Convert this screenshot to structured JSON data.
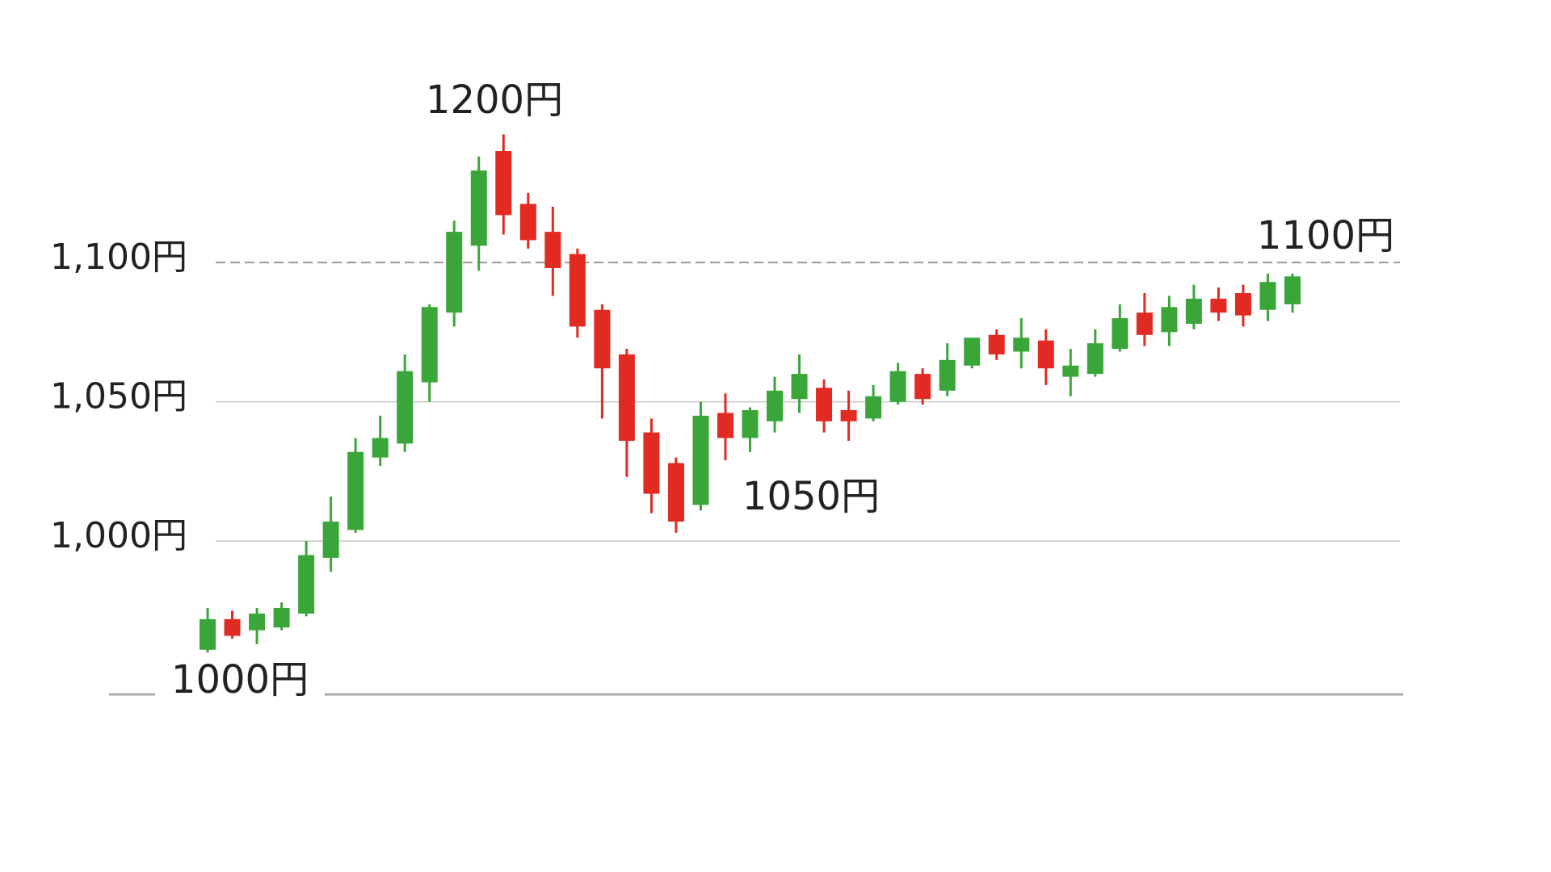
{
  "chart_data": {
    "type": "candlestick",
    "categories": [
      null,
      null,
      null,
      null,
      null,
      null,
      null,
      null,
      null,
      null,
      null,
      null,
      null,
      null,
      null,
      null,
      null,
      null,
      null,
      null,
      null,
      null,
      null,
      null,
      null,
      null,
      null,
      null,
      null,
      null,
      null,
      null,
      null,
      null,
      null,
      null,
      null,
      null,
      null,
      null,
      null,
      null,
      null,
      null,
      null
    ],
    "open": [
      961,
      972,
      968,
      969,
      974,
      994,
      1004,
      1030,
      1035,
      1057,
      1082,
      1106,
      1140,
      1121,
      1111,
      1103,
      1083,
      1067,
      1039,
      1028,
      1013,
      1046,
      1037,
      1043,
      1051,
      1055,
      1047,
      1044,
      1050,
      1060,
      1054,
      1063,
      1074,
      1068,
      1072,
      1059,
      1060,
      1069,
      1082,
      1075,
      1078,
      1087,
      1089,
      1083,
      1085
    ],
    "high": [
      976,
      975,
      976,
      978,
      1000,
      1016,
      1037,
      1045,
      1067,
      1085,
      1115,
      1138,
      1146,
      1125,
      1120,
      1105,
      1085,
      1069,
      1044,
      1030,
      1050,
      1053,
      1048,
      1059,
      1067,
      1058,
      1054,
      1056,
      1064,
      1062,
      1071,
      1073,
      1076,
      1080,
      1076,
      1069,
      1076,
      1085,
      1089,
      1088,
      1092,
      1091,
      1092,
      1096,
      1096
    ],
    "low": [
      960,
      965,
      963,
      968,
      973,
      989,
      1003,
      1027,
      1032,
      1050,
      1077,
      1097,
      1110,
      1105,
      1088,
      1073,
      1044,
      1023,
      1010,
      1003,
      1011,
      1029,
      1032,
      1039,
      1046,
      1039,
      1036,
      1043,
      1049,
      1049,
      1052,
      1062,
      1065,
      1062,
      1056,
      1052,
      1059,
      1068,
      1070,
      1070,
      1076,
      1079,
      1077,
      1079,
      1082
    ],
    "close": [
      972,
      966,
      974,
      976,
      995,
      1007,
      1032,
      1037,
      1061,
      1084,
      1111,
      1133,
      1117,
      1108,
      1098,
      1077,
      1062,
      1036,
      1017,
      1007,
      1045,
      1037,
      1047,
      1054,
      1060,
      1043,
      1043,
      1052,
      1061,
      1051,
      1065,
      1073,
      1067,
      1073,
      1062,
      1063,
      1071,
      1080,
      1074,
      1084,
      1087,
      1082,
      1081,
      1093,
      1095
    ],
    "up_color": "#3aa63a",
    "down_color": "#e02a22",
    "ylim": [
      945,
      1160
    ],
    "yticks": [
      {
        "value": 1000,
        "label": "1,000円"
      },
      {
        "value": 1050,
        "label": "1,050円"
      },
      {
        "value": 1100,
        "label": "1,100円"
      }
    ],
    "grid": true,
    "annotations": [
      "1000円",
      "1200円",
      "1050円",
      "1100円"
    ]
  }
}
